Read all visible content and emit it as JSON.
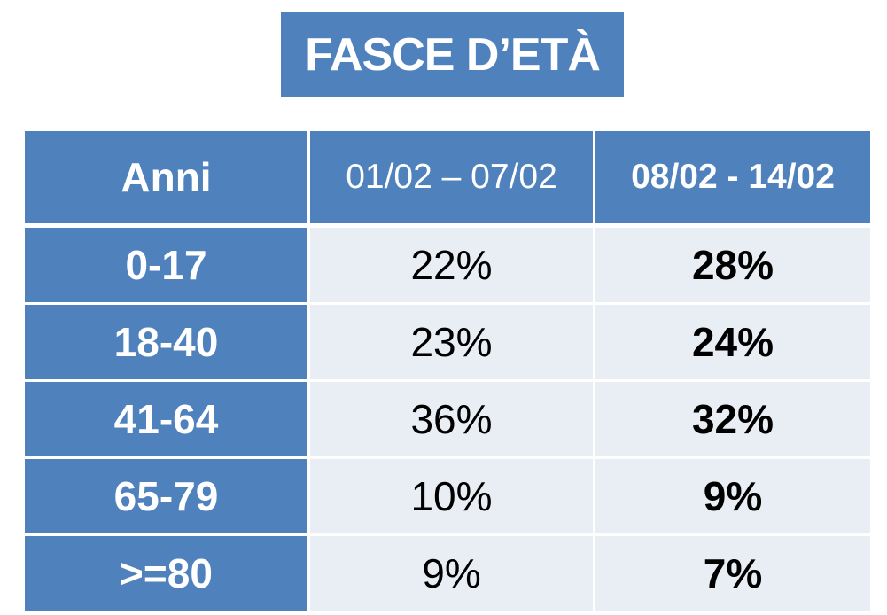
{
  "title": "FASCE D’ETÀ",
  "chart_data": {
    "type": "table",
    "title": "FASCE D’ETÀ",
    "columns": [
      "Anni",
      "01/02 – 07/02",
      "08/02 - 14/02"
    ],
    "rows": [
      {
        "label": "0-17",
        "values": [
          "22%",
          "28%"
        ]
      },
      {
        "label": "18-40",
        "values": [
          "23%",
          "24%"
        ]
      },
      {
        "label": "41-64",
        "values": [
          "36%",
          "32%"
        ]
      },
      {
        "label": "65-79",
        "values": [
          "10%",
          "9%"
        ]
      },
      {
        "label": ">=80",
        "values": [
          "9%",
          "7%"
        ]
      }
    ]
  },
  "colors": {
    "header_bg": "#4f81bd",
    "body_bg": "#e9edf4",
    "header_text": "#ffffff",
    "body_text": "#000000"
  }
}
